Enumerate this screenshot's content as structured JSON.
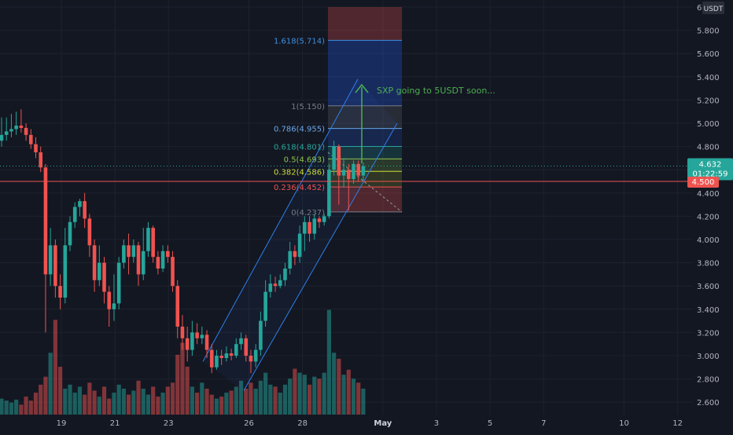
{
  "chart_data": {
    "type": "candlestick",
    "currency_label": "USDT",
    "y_range": [
      2.5,
      6.0
    ],
    "y_ticks": [
      "6.000",
      "5.800",
      "5.600",
      "5.400",
      "5.200",
      "5.000",
      "4.800",
      "4.600",
      "4.400",
      "4.200",
      "4.000",
      "3.800",
      "3.600",
      "3.400",
      "3.200",
      "3.000",
      "2.800",
      "2.600"
    ],
    "x_ticks": [
      {
        "label": "19",
        "day": 19
      },
      {
        "label": "21",
        "day": 21
      },
      {
        "label": "23",
        "day": 23
      },
      {
        "label": "26",
        "day": 26
      },
      {
        "label": "28",
        "day": 28
      },
      {
        "label": "May",
        "day": 31
      },
      {
        "label": "3",
        "day": 33
      },
      {
        "label": "5",
        "day": 35
      },
      {
        "label": "7",
        "day": 37
      },
      {
        "label": "10",
        "day": 40
      },
      {
        "label": "12",
        "day": 42
      }
    ],
    "x_range": [
      17.1,
      44.7
    ],
    "candles": [
      [
        4.85,
        4.9,
        5.05,
        4.8
      ],
      [
        4.9,
        4.93,
        5.05,
        4.85
      ],
      [
        4.93,
        4.95,
        5.08,
        4.88
      ],
      [
        4.95,
        4.98,
        5.1,
        4.9
      ],
      [
        4.98,
        4.96,
        5.12,
        4.92
      ],
      [
        4.96,
        4.9,
        5.0,
        4.85
      ],
      [
        4.9,
        4.82,
        4.95,
        4.78
      ],
      [
        4.82,
        4.75,
        4.88,
        4.7
      ],
      [
        4.75,
        4.62,
        4.8,
        4.58
      ],
      [
        4.62,
        3.7,
        4.65,
        3.2
      ],
      [
        3.7,
        3.95,
        4.1,
        3.6
      ],
      [
        3.95,
        3.6,
        4.0,
        3.5
      ],
      [
        3.6,
        3.5,
        3.7,
        3.4
      ],
      [
        3.5,
        3.95,
        4.1,
        3.45
      ],
      [
        3.95,
        4.15,
        4.2,
        3.9
      ],
      [
        4.15,
        4.28,
        4.32,
        4.1
      ],
      [
        4.28,
        4.33,
        4.35,
        4.2
      ],
      [
        4.33,
        4.18,
        4.4,
        4.1
      ],
      [
        4.18,
        3.95,
        4.22,
        3.85
      ],
      [
        3.95,
        3.65,
        4.0,
        3.55
      ],
      [
        3.65,
        3.8,
        3.95,
        3.6
      ],
      [
        3.8,
        3.55,
        3.85,
        3.45
      ],
      [
        3.55,
        3.4,
        3.6,
        3.25
      ],
      [
        3.4,
        3.45,
        3.7,
        3.3
      ],
      [
        3.45,
        3.8,
        3.85,
        3.4
      ],
      [
        3.8,
        3.95,
        4.0,
        3.75
      ],
      [
        3.95,
        3.85,
        4.05,
        3.7
      ],
      [
        3.85,
        3.95,
        4.0,
        3.8
      ],
      [
        3.95,
        3.7,
        3.98,
        3.6
      ],
      [
        3.7,
        3.9,
        4.1,
        3.65
      ],
      [
        3.9,
        4.1,
        4.15,
        3.85
      ],
      [
        4.1,
        3.85,
        4.12,
        3.8
      ],
      [
        3.85,
        3.75,
        3.9,
        3.7
      ],
      [
        3.75,
        3.9,
        3.95,
        3.72
      ],
      [
        3.9,
        3.85,
        3.95,
        3.8
      ],
      [
        3.85,
        3.6,
        3.9,
        3.55
      ],
      [
        3.6,
        3.25,
        3.65,
        3.15
      ],
      [
        3.25,
        3.15,
        3.35,
        3.05
      ],
      [
        3.15,
        3.05,
        3.25,
        2.95
      ],
      [
        3.05,
        3.2,
        3.3,
        3.0
      ],
      [
        3.2,
        3.15,
        3.28,
        3.1
      ],
      [
        3.15,
        3.18,
        3.25,
        3.1
      ],
      [
        3.18,
        3.05,
        3.22,
        2.98
      ],
      [
        3.05,
        2.9,
        3.1,
        2.85
      ],
      [
        2.9,
        3.0,
        3.05,
        2.88
      ],
      [
        3.0,
        2.98,
        3.05,
        2.92
      ],
      [
        2.98,
        3.02,
        3.08,
        2.95
      ],
      [
        3.02,
        3.0,
        3.06,
        2.96
      ],
      [
        3.0,
        3.1,
        3.15,
        2.98
      ],
      [
        3.1,
        3.15,
        3.2,
        3.05
      ],
      [
        3.15,
        3.0,
        3.18,
        2.95
      ],
      [
        3.0,
        2.95,
        3.05,
        2.85
      ],
      [
        2.95,
        3.05,
        3.1,
        2.9
      ],
      [
        3.05,
        3.3,
        3.38,
        3.0
      ],
      [
        3.3,
        3.55,
        3.65,
        3.25
      ],
      [
        3.55,
        3.62,
        3.7,
        3.5
      ],
      [
        3.62,
        3.6,
        3.68,
        3.55
      ],
      [
        3.6,
        3.65,
        3.7,
        3.58
      ],
      [
        3.65,
        3.75,
        3.8,
        3.6
      ],
      [
        3.75,
        3.9,
        3.98,
        3.7
      ],
      [
        3.9,
        3.85,
        3.95,
        3.78
      ],
      [
        3.85,
        4.05,
        4.12,
        3.8
      ],
      [
        4.05,
        4.15,
        4.2,
        3.9
      ],
      [
        4.15,
        4.05,
        4.2,
        3.98
      ],
      [
        4.05,
        4.18,
        4.22,
        4.0
      ],
      [
        4.18,
        4.15,
        4.2,
        4.1
      ],
      [
        4.15,
        4.2,
        4.22,
        4.12
      ],
      [
        4.2,
        4.6,
        4.65,
        4.18
      ],
      [
        4.6,
        4.8,
        4.85,
        4.55
      ],
      [
        4.8,
        4.55,
        4.82,
        4.3
      ],
      [
        4.55,
        4.6,
        4.7,
        4.45
      ],
      [
        4.6,
        4.52,
        4.65,
        4.25
      ],
      [
        4.52,
        4.65,
        4.68,
        4.48
      ],
      [
        4.65,
        4.55,
        4.68,
        4.5
      ],
      [
        4.55,
        4.63,
        4.66,
        4.5
      ]
    ],
    "volumes": [
      16,
      14,
      12,
      15,
      10,
      18,
      14,
      22,
      30,
      38,
      62,
      95,
      48,
      26,
      30,
      22,
      28,
      20,
      32,
      24,
      18,
      28,
      16,
      22,
      30,
      26,
      20,
      24,
      34,
      26,
      20,
      28,
      18,
      22,
      28,
      32,
      60,
      72,
      48,
      28,
      22,
      32,
      26,
      20,
      16,
      18,
      22,
      24,
      28,
      34,
      26,
      32,
      26,
      34,
      42,
      30,
      28,
      22,
      30,
      36,
      46,
      42,
      40,
      30,
      38,
      36,
      42,
      105,
      62,
      56,
      40,
      45,
      36,
      32,
      26
    ],
    "current_price": "4.632",
    "countdown": "01:22:59",
    "alert_price": "4.500",
    "alert_value": 4.5,
    "fib_levels": [
      {
        "label": "1.618(5.714)",
        "value": 5.714,
        "color": "#3d8fe0"
      },
      {
        "label": "1(5.150)",
        "value": 5.15,
        "color": "#787b86"
      },
      {
        "label": "0.786(4.955)",
        "value": 4.955,
        "color": "#6aa7e8"
      },
      {
        "label": "0.618(4.801)",
        "value": 4.801,
        "color": "#26a69a"
      },
      {
        "label": "0.5(4.693)",
        "value": 4.693,
        "color": "#8bc34a"
      },
      {
        "label": "0.382(4.586)",
        "value": 4.586,
        "color": "#cddc39"
      },
      {
        "label": "0.236(4.452)",
        "value": 4.452,
        "color": "#ef5350"
      },
      {
        "label": "0(4.237)",
        "value": 4.237,
        "color": "#787b86"
      }
    ],
    "annotation": "SXP going to 5USDT soon...",
    "colors": {
      "up": "#26a69a",
      "down": "#ef5350",
      "channel": "#2f7fe8",
      "annotation": "#4caf50"
    }
  }
}
